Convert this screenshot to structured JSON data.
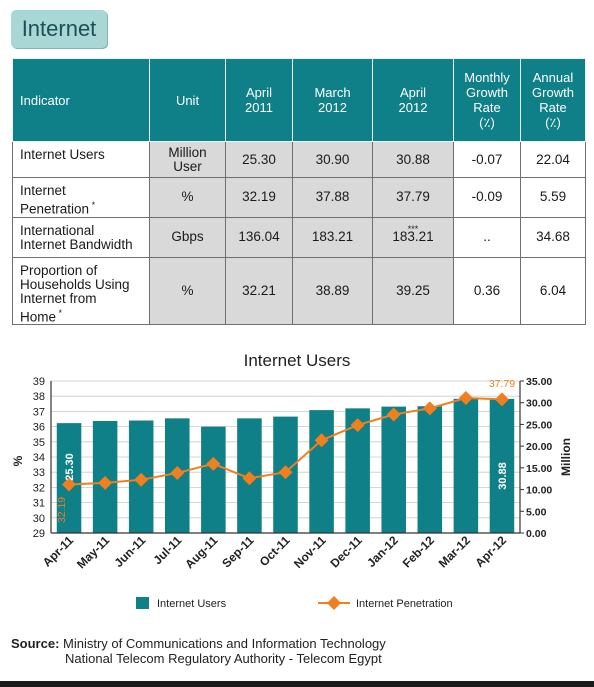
{
  "section": {
    "title": "Internet"
  },
  "table": {
    "headers": {
      "indicator": "Indicator",
      "unit": "Unit",
      "apr2011": [
        "April",
        "2011"
      ],
      "mar2012": [
        "March",
        "2012"
      ],
      "apr2012": [
        "April",
        "2012"
      ],
      "monthly": [
        "Monthly",
        "Growth",
        "Rate",
        "(٪)"
      ],
      "annual": [
        "Annual",
        "Growth",
        "Rate",
        "(٪)"
      ]
    },
    "rows": [
      {
        "label": [
          "Internet Users"
        ],
        "label_sup": "",
        "unit": [
          "Million",
          "User"
        ],
        "apr2011": "25.30",
        "mar2012": "30.90",
        "apr2012": "30.88",
        "apr2012_sup": "",
        "monthly": "-0.07",
        "annual": "22.04"
      },
      {
        "label": [
          "Internet",
          "Penetration"
        ],
        "label_sup": "*",
        "unit": [
          "%"
        ],
        "apr2011": "32.19",
        "mar2012": "37.88",
        "apr2012": "37.79",
        "apr2012_sup": "",
        "monthly": "-0.09",
        "annual": "5.59"
      },
      {
        "label": [
          "International",
          "Internet Bandwidth"
        ],
        "label_sup": "",
        "unit": [
          "Gbps"
        ],
        "apr2011": "136.04",
        "mar2012": "183.21",
        "apr2012": "183.21",
        "apr2012_sup": "***",
        "monthly": "..",
        "annual": "34.68"
      },
      {
        "label": [
          "Proportion of",
          "Households Using",
          "Internet from",
          "Home"
        ],
        "label_sup": "*",
        "unit": [
          "%"
        ],
        "apr2011": "32.21",
        "mar2012": "38.89",
        "apr2012": "39.25",
        "apr2012_sup": "",
        "monthly": "0.36",
        "annual": "6.04"
      }
    ]
  },
  "chart_data": {
    "type": "bar",
    "title": "Internet Users",
    "categories": [
      "Apr-11",
      "May-11",
      "Jun-11",
      "Jul-11",
      "Aug-11",
      "Sep-11",
      "Oct-11",
      "Nov-11",
      "Dec-11",
      "Jan-12",
      "Feb-12",
      "Mar-12",
      "Apr-12"
    ],
    "series": [
      {
        "name": "Internet Users",
        "kind": "bar",
        "axis": "right",
        "color": "#0f7f88",
        "values": [
          25.3,
          25.8,
          25.9,
          26.4,
          24.5,
          26.4,
          26.8,
          28.3,
          28.7,
          29.1,
          29.2,
          30.9,
          30.88
        ]
      },
      {
        "name": "Internet Penetration",
        "kind": "line",
        "axis": "left",
        "color": "#f07f1f",
        "values": [
          32.19,
          32.3,
          32.5,
          32.95,
          33.55,
          32.6,
          33.0,
          35.1,
          36.1,
          36.8,
          37.2,
          37.88,
          37.79
        ]
      }
    ],
    "ylabel_left": "%",
    "ylabel_right": "Million",
    "ylim_left": [
      29,
      39
    ],
    "yticks_left": [
      "29",
      "30",
      "31",
      "32",
      "33",
      "34",
      "35",
      "36",
      "37",
      "38",
      "39"
    ],
    "ylim_right": [
      0,
      35
    ],
    "yticks_right": [
      "0.00",
      "5.00",
      "10.00",
      "15.00",
      "20.00",
      "25.00",
      "30.00",
      "35.00"
    ],
    "grid": true,
    "legend_position": "bottom",
    "annotations": {
      "first_bar_value": "25.30",
      "first_point_value": "32.19",
      "last_bar_value": "30.88",
      "last_point_value": "37.79"
    }
  },
  "source": {
    "label": "Source:",
    "line1": "Ministry of Communications and Information Technology",
    "line2": "National Telecom Regulatory Authority - Telecom Egypt"
  }
}
